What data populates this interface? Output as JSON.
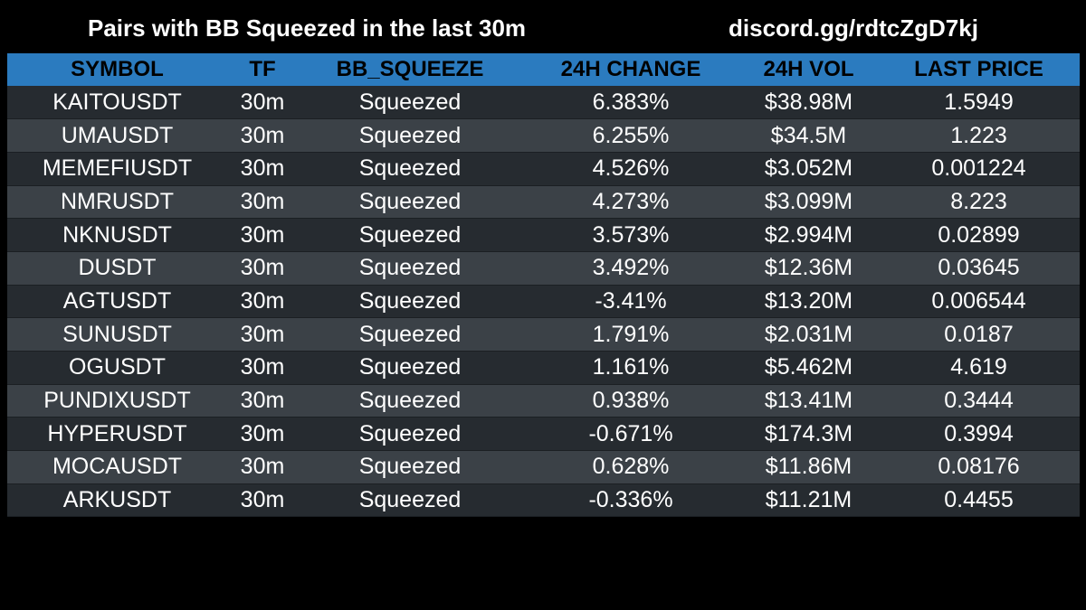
{
  "header": {
    "title": "Pairs with BB Squeezed in the last 30m",
    "link": "discord.gg/rdtcZgD7kj"
  },
  "table": {
    "columns": [
      "SYMBOL",
      "TF",
      "BB_SQUEEZE",
      "24H CHANGE",
      "24H VOL",
      "LAST PRICE"
    ],
    "rows": [
      {
        "symbol": "KAITOUSDT",
        "tf": "30m",
        "bb": "Squeezed",
        "change": "6.383%",
        "vol": "$38.98M",
        "price": "1.5949"
      },
      {
        "symbol": "UMAUSDT",
        "tf": "30m",
        "bb": "Squeezed",
        "change": "6.255%",
        "vol": "$34.5M",
        "price": "1.223"
      },
      {
        "symbol": "MEMEFIUSDT",
        "tf": "30m",
        "bb": "Squeezed",
        "change": "4.526%",
        "vol": "$3.052M",
        "price": "0.001224"
      },
      {
        "symbol": "NMRUSDT",
        "tf": "30m",
        "bb": "Squeezed",
        "change": "4.273%",
        "vol": "$3.099M",
        "price": "8.223"
      },
      {
        "symbol": "NKNUSDT",
        "tf": "30m",
        "bb": "Squeezed",
        "change": "3.573%",
        "vol": "$2.994M",
        "price": "0.02899"
      },
      {
        "symbol": "DUSDT",
        "tf": "30m",
        "bb": "Squeezed",
        "change": "3.492%",
        "vol": "$12.36M",
        "price": "0.03645"
      },
      {
        "symbol": "AGTUSDT",
        "tf": "30m",
        "bb": "Squeezed",
        "change": "-3.41%",
        "vol": "$13.20M",
        "price": "0.006544"
      },
      {
        "symbol": "SUNUSDT",
        "tf": "30m",
        "bb": "Squeezed",
        "change": "1.791%",
        "vol": "$2.031M",
        "price": "0.0187"
      },
      {
        "symbol": "OGUSDT",
        "tf": "30m",
        "bb": "Squeezed",
        "change": "1.161%",
        "vol": "$5.462M",
        "price": "4.619"
      },
      {
        "symbol": "PUNDIXUSDT",
        "tf": "30m",
        "bb": "Squeezed",
        "change": "0.938%",
        "vol": "$13.41M",
        "price": "0.3444"
      },
      {
        "symbol": "HYPERUSDT",
        "tf": "30m",
        "bb": "Squeezed",
        "change": "-0.671%",
        "vol": "$174.3M",
        "price": "0.3994"
      },
      {
        "symbol": "MOCAUSDT",
        "tf": "30m",
        "bb": "Squeezed",
        "change": "0.628%",
        "vol": "$11.86M",
        "price": "0.08176"
      },
      {
        "symbol": "ARKUSDT",
        "tf": "30m",
        "bb": "Squeezed",
        "change": "-0.336%",
        "vol": "$11.21M",
        "price": "0.4455"
      }
    ]
  },
  "colors": {
    "background": "#000000",
    "header_row": "#2b7bbf",
    "row_dark": "#262b30",
    "row_light": "#3b4147",
    "text": "#ffffff",
    "header_text": "#000000"
  }
}
